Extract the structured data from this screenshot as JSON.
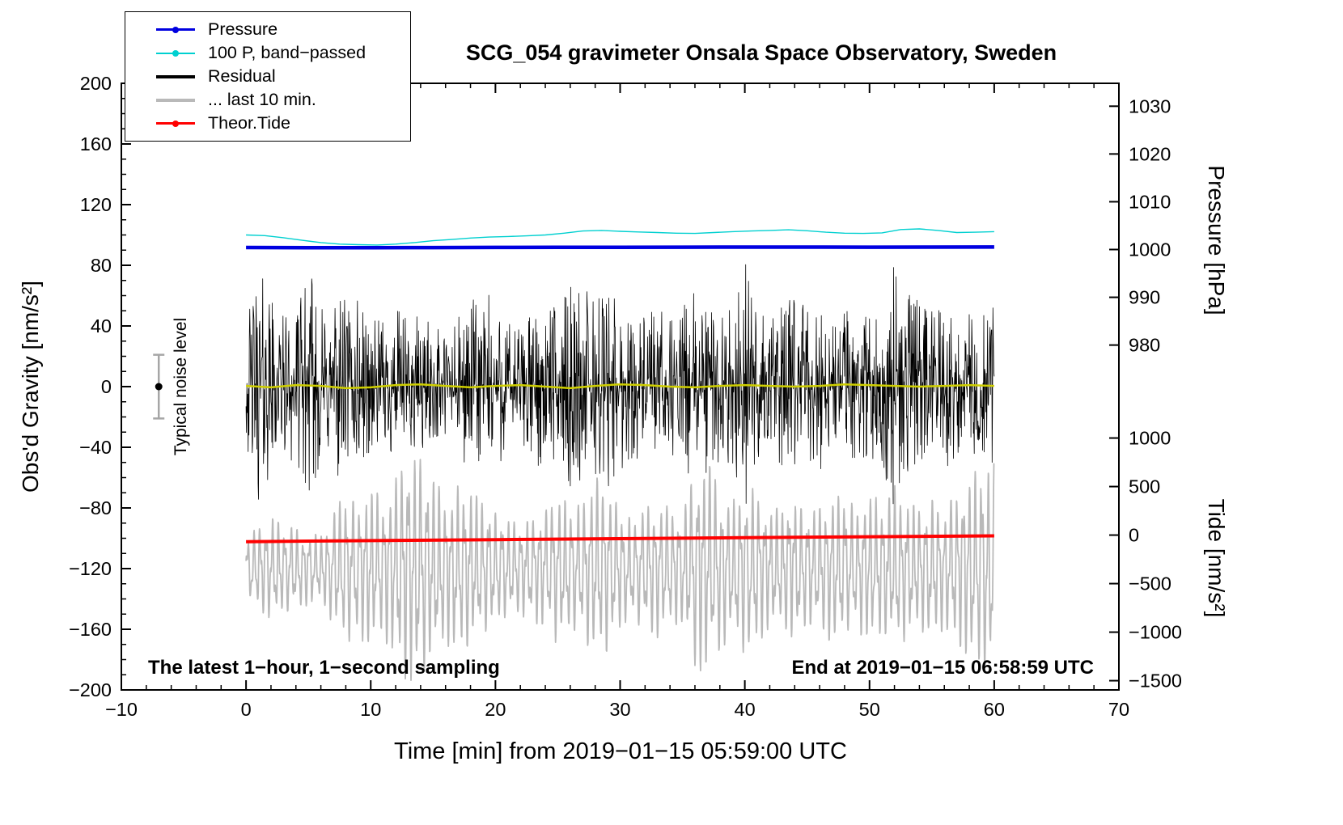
{
  "title": "SCG_054 gravimeter Onsala Space Observatory, Sweden",
  "annotations": {
    "sampling_note": "The latest 1−hour, 1−second sampling",
    "end_note": "End at 2019−01−15 06:58:59 UTC",
    "noise_label": "Typical noise level"
  },
  "legend": {
    "items": [
      {
        "label": "Pressure",
        "color": "#0000e0",
        "symbol": "line-dot",
        "thickness": 3
      },
      {
        "label": "100 P, band−passed",
        "color": "#00d0d0",
        "symbol": "line-dot",
        "thickness": 2
      },
      {
        "label": "Residual",
        "color": "#000000",
        "symbol": "line",
        "thickness": 4
      },
      {
        "label": "... last 10 min.",
        "color": "#b9b9b9",
        "symbol": "line",
        "thickness": 4
      },
      {
        "label": "Theor.Tide",
        "color": "#ff0000",
        "symbol": "line-dot",
        "thickness": 3
      }
    ]
  },
  "chart_data": {
    "type": "line",
    "title": "SCG_054 gravimeter Onsala Space Observatory, Sweden",
    "x": {
      "label": "Time [min] from 2019−01−15 05:59:00 UTC",
      "min": -10,
      "max": 70,
      "ticks": [
        -10,
        0,
        10,
        20,
        30,
        40,
        50,
        60,
        70
      ],
      "tick_labels": [
        "−10",
        "0",
        "10",
        "20",
        "30",
        "40",
        "50",
        "60",
        "70"
      ],
      "minor_step": 2
    },
    "y_gravity": {
      "label": "Obs'd Gravity [nm/s²]",
      "min": -200,
      "max": 200,
      "ticks": [
        200,
        160,
        120,
        80,
        40,
        0,
        -40,
        -80,
        -120,
        -160,
        -200
      ],
      "tick_labels": [
        "200",
        "160",
        "120",
        "80",
        "40",
        "0",
        "−40",
        "−80",
        "−120",
        "−160",
        "−200"
      ],
      "minor_step": 10
    },
    "y_pressure": {
      "label": "Pressure [hPa]",
      "ticks": [
        1030,
        1020,
        1010,
        1000,
        990,
        980
      ],
      "tick_labels": [
        "1030",
        "1020",
        "1010",
        "1000",
        "990",
        "980"
      ],
      "ref_value": 1000,
      "gravity_at_ref": 90.4,
      "gravity_per_unit": 3.15
    },
    "y_tide": {
      "label": "Tide [nm/s²]",
      "ticks": [
        1000,
        500,
        0,
        -500,
        -1000,
        -1500
      ],
      "tick_labels": [
        "1000",
        "500",
        "0",
        "−500",
        "−1000",
        "−1500"
      ],
      "ref_value": 0,
      "gravity_at_ref": -97.9,
      "gravity_per_unit": 0.064
    },
    "series": [
      {
        "name": "100 P, band−passed",
        "color": "#00d0d0",
        "axis": "gravity",
        "line_width": 1.4,
        "x": [
          0,
          1.5,
          3,
          4.5,
          6,
          7.5,
          9,
          10.5,
          12,
          13.5,
          15,
          16.5,
          18,
          19.5,
          21,
          22.5,
          24,
          25.5,
          27,
          28.5,
          30,
          31.5,
          33,
          34.5,
          36,
          37.5,
          39,
          40.5,
          42,
          43.5,
          45,
          46.5,
          48,
          49.5,
          51,
          52.5,
          54,
          55.5,
          57,
          58.5,
          60
        ],
        "values": [
          100,
          99.6,
          98.2,
          96.5,
          95,
          94,
          93.6,
          93.4,
          94,
          95,
          96.2,
          97,
          98,
          98.6,
          99,
          99.4,
          100,
          101.2,
          102.6,
          103,
          102.4,
          102,
          101.6,
          101.2,
          101,
          101.6,
          102.2,
          102.6,
          103,
          103.4,
          102.8,
          101.8,
          101.2,
          101,
          101.4,
          103.6,
          104,
          103,
          101.6,
          101.8,
          102.2
        ]
      },
      {
        "name": "Pressure",
        "color": "#0000e0",
        "axis": "pressure",
        "line_width": 4.5,
        "x": [
          0,
          5,
          10,
          15,
          20,
          25,
          30,
          35,
          40,
          45,
          50,
          55,
          60
        ],
        "values": [
          1000.42,
          1000.38,
          1000.37,
          1000.4,
          1000.44,
          1000.47,
          1000.48,
          1000.49,
          1000.5,
          1000.5,
          1000.49,
          1000.51,
          1000.53
        ]
      },
      {
        "name": "Residual",
        "color": "#000000",
        "axis": "gravity",
        "line_width": 0.8,
        "render": "noise",
        "x_start": 0,
        "x_end": 60,
        "points_per_min": 30,
        "envelope_x": [
          0,
          1,
          2,
          3,
          4,
          5,
          6,
          7,
          8,
          9,
          10,
          11,
          12,
          13,
          14,
          15,
          16,
          17,
          18,
          19,
          20,
          21,
          22,
          23,
          24,
          25,
          26,
          27,
          28,
          29,
          30,
          31,
          32,
          33,
          34,
          35,
          36,
          37,
          38,
          39,
          40,
          41,
          42,
          43,
          44,
          45,
          46,
          47,
          48,
          49,
          50,
          51,
          52,
          53,
          54,
          55,
          56,
          57,
          58,
          59,
          60
        ],
        "envelope": [
          40,
          80,
          60,
          48,
          52,
          78,
          55,
          58,
          64,
          60,
          48,
          42,
          52,
          45,
          48,
          40,
          42,
          46,
          56,
          64,
          60,
          46,
          42,
          50,
          56,
          52,
          66,
          70,
          62,
          76,
          56,
          50,
          46,
          52,
          46,
          52,
          64,
          60,
          52,
          50,
          88,
          56,
          52,
          56,
          60,
          62,
          56,
          52,
          54,
          50,
          46,
          52,
          82,
          62,
          56,
          52,
          60,
          52,
          50,
          46,
          56
        ]
      },
      {
        "name": "Residual (smoothed)",
        "color": "#d0d000",
        "axis": "gravity",
        "line_width": 2.5,
        "x": [
          0,
          2,
          4,
          6,
          8,
          10,
          12,
          14,
          16,
          18,
          20,
          22,
          24,
          26,
          28,
          30,
          32,
          34,
          36,
          38,
          40,
          42,
          44,
          46,
          48,
          50,
          52,
          54,
          56,
          58,
          60
        ],
        "values": [
          0.5,
          -0.5,
          1,
          0.5,
          -1,
          -0.5,
          1,
          1.5,
          0.5,
          -0.5,
          0.5,
          1,
          0,
          -1,
          0.5,
          1.5,
          1,
          0,
          -0.5,
          0.5,
          1,
          0.5,
          0,
          0.5,
          1.5,
          1,
          0.5,
          0,
          0.5,
          1,
          0.5
        ]
      },
      {
        "name": "... last 10 min.",
        "color": "#b9b9b9",
        "axis": "gravity",
        "line_width": 1.8,
        "render": "oscillation",
        "center": -120,
        "period_min": 0.5,
        "x_start": 0,
        "x_end": 60,
        "points_per_min": 40,
        "envelope_x": [
          0,
          1,
          2,
          3,
          4,
          5,
          6,
          7,
          8,
          9,
          10,
          11,
          12,
          13,
          14,
          15,
          16,
          17,
          18,
          19,
          20,
          21,
          22,
          23,
          24,
          25,
          26,
          27,
          28,
          29,
          30,
          31,
          32,
          33,
          34,
          35,
          36,
          37,
          38,
          39,
          40,
          41,
          42,
          43,
          44,
          45,
          46,
          47,
          48,
          49,
          50,
          51,
          52,
          53,
          54,
          55,
          56,
          57,
          58,
          59,
          60
        ],
        "envelope": [
          18,
          26,
          32,
          28,
          25,
          22,
          20,
          34,
          46,
          40,
          50,
          42,
          56,
          72,
          66,
          54,
          46,
          50,
          48,
          40,
          34,
          30,
          28,
          32,
          36,
          46,
          38,
          40,
          56,
          50,
          36,
          30,
          38,
          42,
          36,
          34,
          60,
          66,
          50,
          40,
          52,
          46,
          36,
          38,
          42,
          36,
          38,
          46,
          42,
          38,
          46,
          40,
          50,
          42,
          38,
          42,
          38,
          46,
          56,
          62,
          66
        ]
      },
      {
        "name": "Theor.Tide",
        "color": "#ff0000",
        "axis": "tide",
        "line_width": 4,
        "x": [
          0,
          10,
          20,
          30,
          40,
          50,
          60
        ],
        "values": [
          -68,
          -57,
          -47,
          -37,
          -27,
          -17,
          -8
        ]
      }
    ],
    "noise_marker": {
      "x": -7,
      "value": 0,
      "error": 21
    }
  }
}
